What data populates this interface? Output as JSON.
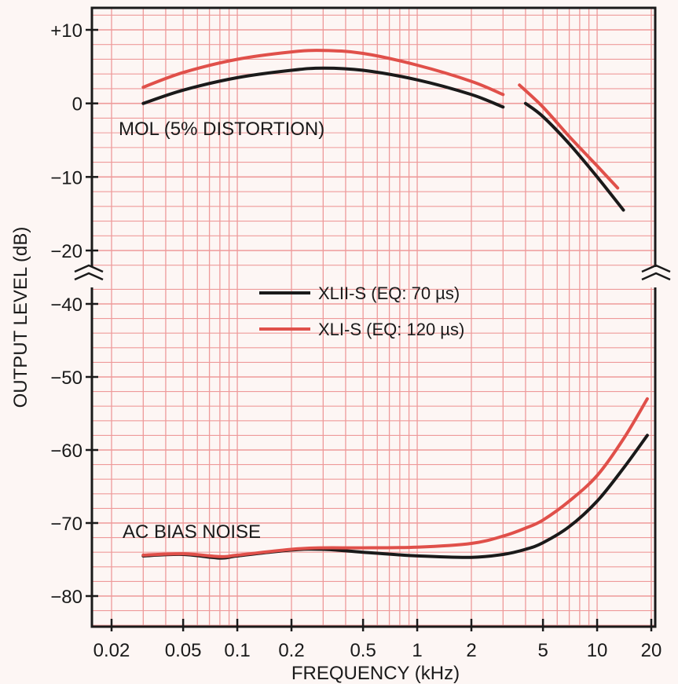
{
  "chart_data": {
    "type": "line",
    "xscale": "log",
    "xlabel": "FREQUENCY (kHz)",
    "ylabel": "OUTPUT LEVEL (dB)",
    "x_ticks": [
      {
        "value": 0.02,
        "label": "0.02"
      },
      {
        "value": 0.05,
        "label": "0.05"
      },
      {
        "value": 0.1,
        "label": "0.1"
      },
      {
        "value": 0.2,
        "label": "0.2"
      },
      {
        "value": 0.5,
        "label": "0.5"
      },
      {
        "value": 1,
        "label": "1"
      },
      {
        "value": 2,
        "label": "2"
      },
      {
        "value": 5,
        "label": "5"
      },
      {
        "value": 10,
        "label": "10"
      },
      {
        "value": 20,
        "label": "20"
      }
    ],
    "upper_axis": {
      "ylim": [
        -20,
        10
      ],
      "ticks": [
        {
          "value": 10,
          "label": "+10"
        },
        {
          "value": 0,
          "label": "0"
        },
        {
          "value": -10,
          "label": "−10"
        },
        {
          "value": -20,
          "label": "−20"
        }
      ]
    },
    "lower_axis": {
      "ylim": [
        -80,
        -40
      ],
      "ticks": [
        {
          "value": -40,
          "label": "−40"
        },
        {
          "value": -50,
          "label": "−50"
        },
        {
          "value": -60,
          "label": "−60"
        },
        {
          "value": -70,
          "label": "−70"
        },
        {
          "value": -80,
          "label": "−80"
        }
      ]
    },
    "axis_break": true,
    "grid": true,
    "annotations": {
      "mol": "MOL (5% DISTORTION)",
      "noise": "AC BIAS NOISE"
    },
    "legend_position": "center",
    "series": [
      {
        "name": "XLII-S (EQ: 70 µs)",
        "color": "#1a1a1a",
        "mol_segments": [
          {
            "x": [
              0.03,
              0.05,
              0.1,
              0.2,
              0.3,
              0.5,
              1,
              2,
              3
            ],
            "y": [
              0,
              1.8,
              3.5,
              4.5,
              4.8,
              4.5,
              3.2,
              1.2,
              -0.5
            ]
          },
          {
            "x": [
              4,
              5,
              7,
              10,
              14
            ],
            "y": [
              0,
              -1.8,
              -5.5,
              -10,
              -14.5
            ]
          }
        ],
        "noise": {
          "x": [
            0.03,
            0.05,
            0.08,
            0.1,
            0.2,
            0.3,
            0.5,
            1,
            2,
            3,
            4,
            5,
            7,
            10,
            14,
            19
          ],
          "y": [
            -74.5,
            -74.3,
            -74.8,
            -74.5,
            -73.7,
            -73.6,
            -74.0,
            -74.5,
            -74.7,
            -74.3,
            -73.6,
            -72.7,
            -70.5,
            -67.0,
            -62.5,
            -58.0
          ]
        }
      },
      {
        "name": "XLI-S (EQ: 120 µs)",
        "color": "#e0504a",
        "mol_segments": [
          {
            "x": [
              0.03,
              0.05,
              0.1,
              0.2,
              0.3,
              0.5,
              1,
              2,
              3
            ],
            "y": [
              2.2,
              4.2,
              6.0,
              7.0,
              7.2,
              6.8,
              5.2,
              3.0,
              1.2
            ]
          },
          {
            "x": [
              3.7,
              5,
              7,
              10,
              13
            ],
            "y": [
              2.5,
              -0.5,
              -4.5,
              -8.5,
              -11.5
            ]
          }
        ],
        "noise": {
          "x": [
            0.03,
            0.05,
            0.08,
            0.1,
            0.2,
            0.3,
            0.5,
            1,
            2,
            3,
            4,
            5,
            7,
            10,
            14,
            19
          ],
          "y": [
            -74.4,
            -74.2,
            -74.6,
            -74.4,
            -73.6,
            -73.4,
            -73.4,
            -73.3,
            -72.8,
            -71.8,
            -70.7,
            -69.6,
            -67.0,
            -63.5,
            -58.5,
            -53.0
          ]
        }
      }
    ]
  }
}
